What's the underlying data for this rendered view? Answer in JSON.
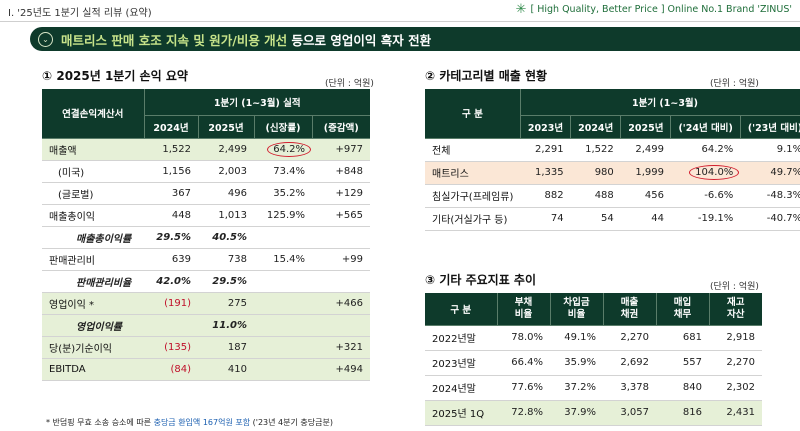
{
  "header": {
    "section": "Ⅰ. '25년도 1분기 실적 리뷰 (요약)",
    "brand": "[ High Quality, Better Price ] Online No.1 Brand 'ZINUS'"
  },
  "banner": {
    "icon": "chevron-down-icon",
    "highlight": "매트리스 판매 호조 지속 및 원가/비용 개선",
    "rest": " 등으로 영업이익 흑자 전환"
  },
  "table1": {
    "title": "① 2025년 1분기 손익 요약",
    "unit": "(단위 : 억원)",
    "corner": "연결손익계산서",
    "group": "1분기 (1~3월) 실적",
    "cols": [
      "2024년",
      "2025년",
      "(신장률)",
      "(증감액)"
    ],
    "rows": [
      {
        "label": "매출액",
        "v": [
          "1,522",
          "2,499",
          "64.2%",
          "+977"
        ]
      },
      {
        "label": "(미국)",
        "v": [
          "1,156",
          "2,003",
          "73.4%",
          "+848"
        ]
      },
      {
        "label": "(글로벌)",
        "v": [
          "367",
          "496",
          "35.2%",
          "+129"
        ]
      },
      {
        "label": "매출총이익",
        "v": [
          "448",
          "1,013",
          "125.9%",
          "+565"
        ]
      },
      {
        "label": "매출총이익률",
        "v": [
          "29.5%",
          "40.5%",
          "",
          ""
        ]
      },
      {
        "label": "판매관리비",
        "v": [
          "639",
          "738",
          "15.4%",
          "+99"
        ]
      },
      {
        "label": "판매관리비율",
        "v": [
          "42.0%",
          "29.5%",
          "",
          ""
        ]
      },
      {
        "label": "영업이익 *",
        "v": [
          "(191)",
          "275",
          "",
          "+466"
        ]
      },
      {
        "label": "영업이익률",
        "v": [
          "",
          "11.0%",
          "",
          ""
        ]
      },
      {
        "label": "당(분)기순이익",
        "v": [
          "(135)",
          "187",
          "",
          "+321"
        ]
      },
      {
        "label": "EBITDA",
        "v": [
          "(84)",
          "410",
          "",
          "+494"
        ]
      }
    ]
  },
  "table2": {
    "title": "② 카테고리별 매출 현황",
    "unit": "(단위 : 억원)",
    "corner": "구   분",
    "group": "1분기 (1~3월)",
    "cols": [
      "2023년",
      "2024년",
      "2025년",
      "('24년 대비)",
      "('23년 대비)"
    ],
    "rows": [
      {
        "label": "전체",
        "v": [
          "2,291",
          "1,522",
          "2,499",
          "64.2%",
          "9.1%"
        ]
      },
      {
        "label": "매트리스",
        "v": [
          "1,335",
          "980",
          "1,999",
          "104.0%",
          "49.7%"
        ]
      },
      {
        "label": "침실가구(프레임류)",
        "v": [
          "882",
          "488",
          "456",
          "-6.6%",
          "-48.3%"
        ]
      },
      {
        "label": "기타(거실가구 등)",
        "v": [
          "74",
          "54",
          "44",
          "-19.1%",
          "-40.7%"
        ]
      }
    ]
  },
  "table3": {
    "title": "③ 기타 주요지표 추이",
    "unit": "(단위 : 억원)",
    "corner": "구   분",
    "cols": [
      "부채\n비율",
      "차입금\n비율",
      "매출\n채권",
      "매입\n채무",
      "재고\n자산"
    ],
    "rows": [
      {
        "label": "2022년말",
        "v": [
          "78.0%",
          "49.1%",
          "2,270",
          "681",
          "2,918"
        ]
      },
      {
        "label": "2023년말",
        "v": [
          "66.4%",
          "35.9%",
          "2,692",
          "557",
          "2,270"
        ]
      },
      {
        "label": "2024년말",
        "v": [
          "77.6%",
          "37.2%",
          "3,378",
          "840",
          "2,302"
        ]
      },
      {
        "label": "2025년 1Q",
        "v": [
          "72.8%",
          "37.9%",
          "3,057",
          "816",
          "2,431"
        ]
      }
    ]
  },
  "footnote": {
    "pre": "* 반덤핑 무효 소송 승소에 따른 ",
    "blue": "충당금 환입액 167억원 포함",
    "post": " ('23년 4분기 충당금분)"
  }
}
